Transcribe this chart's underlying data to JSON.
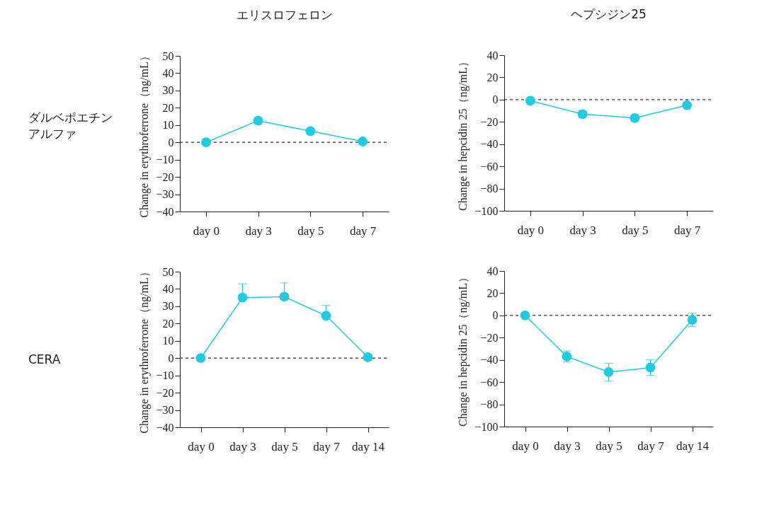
{
  "chart_data": [
    {
      "type": "line",
      "title": "エリスロフェロン",
      "annotations": [
        "ダルベポエチンアルファ"
      ],
      "ylabel": "Change in erythroferrone（ng/mL）",
      "categories": [
        "day 0",
        "day 3",
        "day 5",
        "day 7"
      ],
      "series": [
        {
          "color": "#1fcbe0",
          "values": [
            0,
            12.5,
            6.5,
            0.5
          ],
          "errors": [
            null,
            2,
            1.5,
            null
          ]
        }
      ],
      "ylim": [
        -40,
        50
      ],
      "yticks": [
        -40,
        -30,
        -20,
        -10,
        0,
        10,
        20,
        30,
        40,
        50
      ],
      "ref_lines": [
        {
          "axis": "y",
          "value": 0,
          "color": "#333333",
          "line_style": "dashed"
        }
      ],
      "grid": false,
      "marker": "circle",
      "line_style": "solid"
    },
    {
      "type": "line",
      "title": "ヘプシジン25",
      "ylabel": "Change in hepcidin 25（ng/mL）",
      "categories": [
        "day 0",
        "day 3",
        "day 5",
        "day 7"
      ],
      "series": [
        {
          "color": "#1fcbe0",
          "values": [
            -1,
            -13,
            -16.5,
            -5
          ],
          "errors": [
            null,
            3,
            3,
            null
          ]
        }
      ],
      "ylim": [
        -100,
        40
      ],
      "yticks": [
        -100,
        -80,
        -60,
        -40,
        -20,
        0,
        20,
        40
      ],
      "ref_lines": [
        {
          "axis": "y",
          "value": 0,
          "color": "#333333",
          "line_style": "dashed"
        }
      ],
      "grid": false,
      "marker": "circle",
      "line_style": "solid"
    },
    {
      "type": "line",
      "annotations": [
        "CERA"
      ],
      "ylabel": "Change in erythroferrone（ng/mL）",
      "categories": [
        "day 0",
        "day 3",
        "day 5",
        "day 7",
        "day 14"
      ],
      "series": [
        {
          "color": "#1fcbe0",
          "values": [
            0,
            35,
            35.5,
            24.5,
            0.5
          ],
          "errors": [
            null,
            [
              35,
              43
            ],
            [
              35.5,
              43.5
            ],
            [
              24.5,
              30.5
            ],
            null
          ]
        }
      ],
      "ylim": [
        -40,
        50
      ],
      "yticks": [
        -40,
        -30,
        -20,
        -10,
        0,
        10,
        20,
        30,
        40,
        50
      ],
      "ref_lines": [
        {
          "axis": "y",
          "value": 0,
          "color": "#333333",
          "line_style": "dashed"
        }
      ],
      "grid": false,
      "marker": "circle",
      "line_style": "solid"
    },
    {
      "type": "line",
      "ylabel": "Change in hepcidin 25（ng/mL）",
      "categories": [
        "day 0",
        "day 3",
        "day 5",
        "day 7",
        "day 14"
      ],
      "series": [
        {
          "color": "#1fcbe0",
          "values": [
            0,
            -37,
            -51,
            -47,
            -4
          ],
          "errors": [
            null,
            5,
            8,
            7,
            6
          ]
        }
      ],
      "ylim": [
        -100,
        40
      ],
      "yticks": [
        -100,
        -80,
        -60,
        -40,
        -20,
        0,
        20,
        40
      ],
      "ref_lines": [
        {
          "axis": "y",
          "value": 0,
          "color": "#333333",
          "line_style": "dashed"
        }
      ],
      "grid": false,
      "marker": "circle",
      "line_style": "solid"
    }
  ]
}
